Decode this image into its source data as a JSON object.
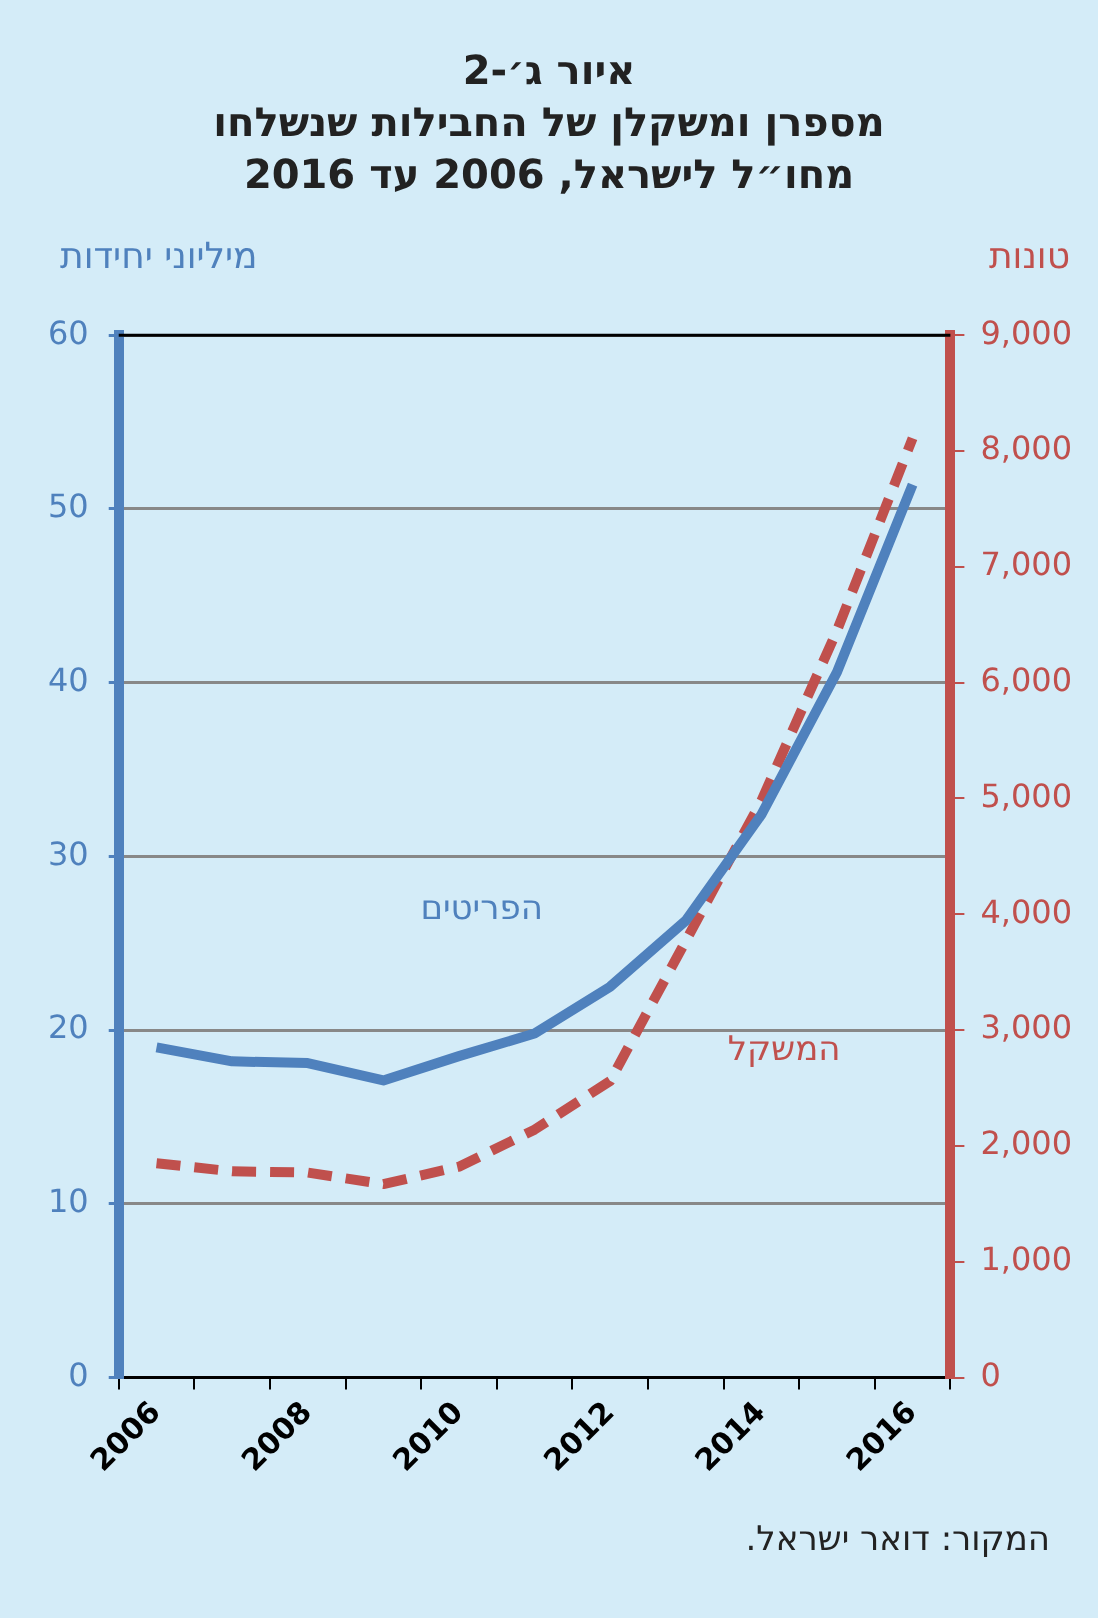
{
  "chart_data": {
    "type": "line",
    "title": "איור ג׳-2",
    "subtitle": "מספרן ומשקלן של החבילות שנשלחו\nמחו״ל לישראל, 2006 עד 2016",
    "ylabel": "מיליוני יחידות",
    "y2label": "טונות",
    "categories": [
      "2006",
      null,
      "2008",
      null,
      "2010",
      null,
      "2012",
      null,
      "2014",
      null,
      "2016"
    ],
    "series": [
      {
        "name": "הפריטים",
        "color": "#4f81bd",
        "line_style": "solid",
        "values": [
          19.0,
          18.2,
          18.1,
          17.1,
          18.5,
          19.8,
          22.5,
          26.3,
          32.4,
          40.6,
          51.4
        ]
      },
      {
        "name": "המשקל",
        "color": "#c0504d",
        "line_style": "dashed",
        "axis": "y2",
        "values": [
          1850,
          1780,
          1770,
          1670,
          1820,
          2140,
          2560,
          3770,
          4980,
          6450,
          8110
        ]
      }
    ],
    "ylim": [
      0,
      60
    ],
    "yticks": [
      0,
      10,
      20,
      30,
      40,
      50,
      60
    ],
    "y2lim": [
      0,
      9000
    ],
    "y2ticks": [
      {
        "value": 0,
        "label": "0"
      },
      {
        "value": 1000,
        "label": "1,000"
      },
      {
        "value": 2000,
        "label": "2,000"
      },
      {
        "value": 3000,
        "label": "3,000"
      },
      {
        "value": 4000,
        "label": "4,000"
      },
      {
        "value": 5000,
        "label": "5,000"
      },
      {
        "value": 6000,
        "label": "6,000"
      },
      {
        "value": 7000,
        "label": "7,000"
      },
      {
        "value": 8000,
        "label": "8,000"
      },
      {
        "value": 9000,
        "label": "9,000"
      }
    ],
    "grid": "y",
    "legend": false,
    "marker": "none",
    "annotations": [
      "המקור: דואר ישראל."
    ]
  }
}
